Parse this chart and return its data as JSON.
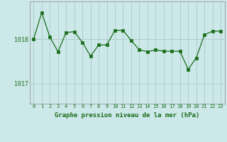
{
  "x": [
    0,
    1,
    2,
    3,
    4,
    5,
    6,
    7,
    8,
    9,
    10,
    11,
    12,
    13,
    14,
    15,
    16,
    17,
    18,
    19,
    20,
    21,
    22,
    23
  ],
  "y": [
    1018.0,
    1018.6,
    1018.05,
    1017.72,
    1018.15,
    1018.17,
    1017.93,
    1017.62,
    1017.87,
    1017.87,
    1018.2,
    1018.2,
    1017.97,
    1017.76,
    1017.72,
    1017.76,
    1017.73,
    1017.73,
    1017.73,
    1017.32,
    1017.58,
    1018.1,
    1018.18,
    1018.18
  ],
  "line_color": "#1a6e1a",
  "marker_color": "#1a6e1a",
  "bg_color": "#cce8e8",
  "grid_color": "#b0c8c8",
  "xlabel": "Graphe pression niveau de la mer (hPa)",
  "tick_color": "#1a6e1a",
  "ytick_labels": [
    "1018",
    "1017"
  ],
  "ytick_values": [
    1018.0,
    1017.0
  ],
  "ylim_min": 1016.55,
  "ylim_max": 1018.85,
  "xlim_min": -0.5,
  "xlim_max": 23.5
}
